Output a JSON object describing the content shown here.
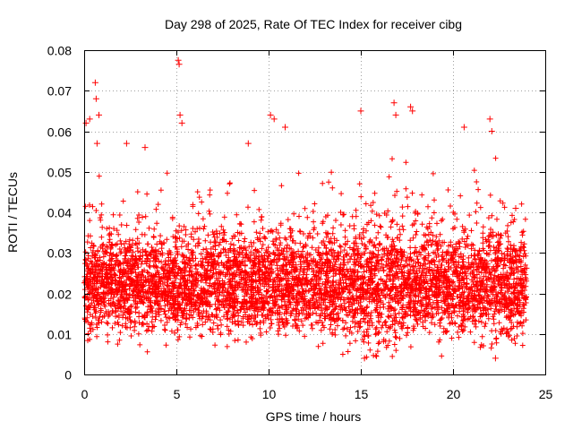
{
  "chart_data": {
    "type": "scatter",
    "title": "Day 298 of 2025, Rate Of TEC Index for receiver cibg",
    "xlabel": "GPS time / hours",
    "ylabel": "ROTI / TECUs",
    "xlim": [
      0,
      25
    ],
    "ylim": [
      0,
      0.08
    ],
    "xticks": [
      0,
      5,
      10,
      15,
      20,
      25
    ],
    "xtick_labels": [
      "0",
      "5",
      "10",
      "15",
      "20",
      "25"
    ],
    "yticks": [
      0,
      0.01,
      0.02,
      0.03,
      0.04,
      0.05,
      0.06,
      0.07,
      0.08
    ],
    "ytick_labels": [
      "0",
      "0.01",
      "0.02",
      "0.03",
      "0.04",
      "0.05",
      "0.06",
      "0.07",
      "0.08"
    ],
    "grid": true,
    "marker": "+",
    "color": "#ff0000",
    "series": [
      {
        "name": "ROTI",
        "x_range": [
          0,
          24
        ],
        "bulk_range": [
          0.008,
          0.035
        ],
        "density_points": 5200,
        "notable_points": [
          {
            "x": 0.1,
            "y": 0.062
          },
          {
            "x": 0.3,
            "y": 0.063
          },
          {
            "x": 0.6,
            "y": 0.072
          },
          {
            "x": 0.65,
            "y": 0.068
          },
          {
            "x": 0.8,
            "y": 0.064
          },
          {
            "x": 0.7,
            "y": 0.057
          },
          {
            "x": 2.3,
            "y": 0.057
          },
          {
            "x": 3.3,
            "y": 0.056
          },
          {
            "x": 5.1,
            "y": 0.0775
          },
          {
            "x": 5.15,
            "y": 0.0765
          },
          {
            "x": 5.2,
            "y": 0.064
          },
          {
            "x": 5.3,
            "y": 0.062
          },
          {
            "x": 8.9,
            "y": 0.057
          },
          {
            "x": 10.1,
            "y": 0.064
          },
          {
            "x": 10.3,
            "y": 0.063
          },
          {
            "x": 10.9,
            "y": 0.061
          },
          {
            "x": 15.0,
            "y": 0.065
          },
          {
            "x": 16.8,
            "y": 0.067
          },
          {
            "x": 16.9,
            "y": 0.064
          },
          {
            "x": 17.7,
            "y": 0.066
          },
          {
            "x": 17.8,
            "y": 0.065
          },
          {
            "x": 20.6,
            "y": 0.061
          },
          {
            "x": 22.0,
            "y": 0.063
          },
          {
            "x": 22.1,
            "y": 0.06
          },
          {
            "x": 23.4,
            "y": 0.041
          },
          {
            "x": 15.2,
            "y": 0.004
          },
          {
            "x": 22.3,
            "y": 0.004
          }
        ]
      }
    ]
  }
}
